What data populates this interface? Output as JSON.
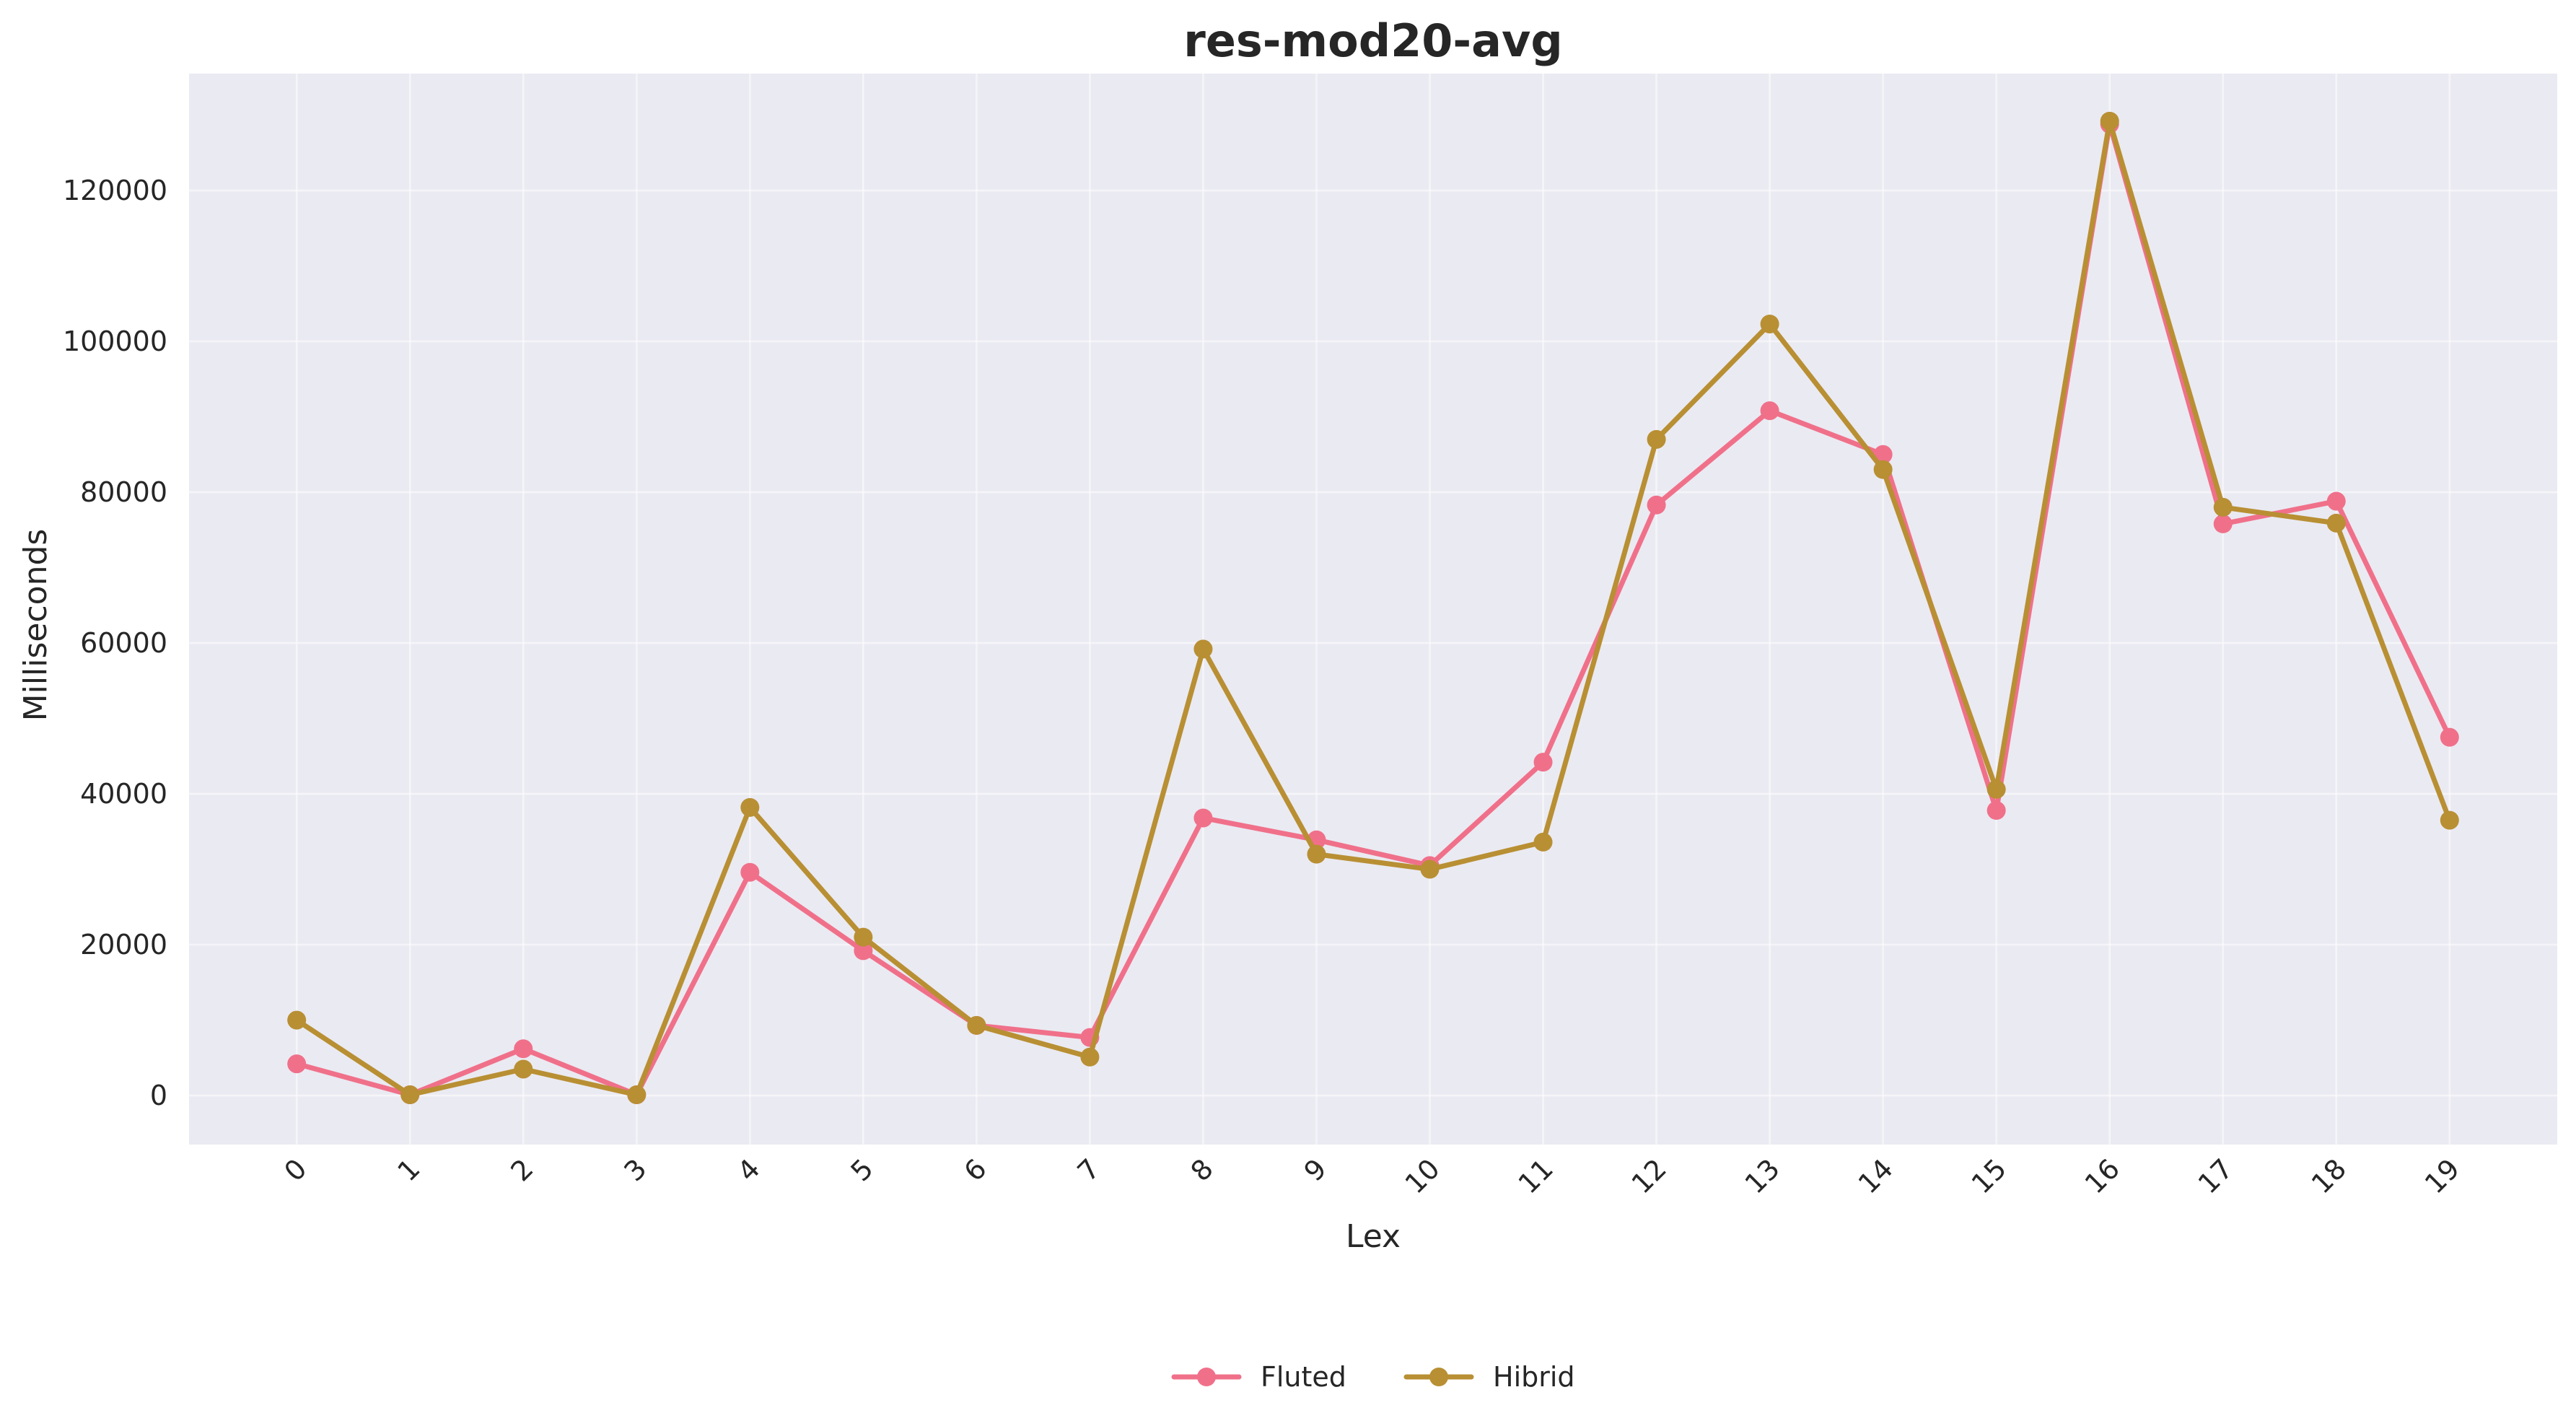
{
  "chart_data": {
    "type": "line",
    "title": "res-mod20-avg",
    "xlabel": "Lex",
    "ylabel": "Milliseconds",
    "x": [
      0,
      1,
      2,
      3,
      4,
      5,
      6,
      7,
      8,
      9,
      10,
      11,
      12,
      13,
      14,
      15,
      16,
      17,
      18,
      19
    ],
    "x_tick_labels": [
      "0",
      "1",
      "2",
      "3",
      "4",
      "5",
      "6",
      "7",
      "8",
      "9",
      "10",
      "11",
      "12",
      "13",
      "14",
      "15",
      "16",
      "17",
      "18",
      "19"
    ],
    "y_tick_labels": [
      "0",
      "20000",
      "40000",
      "60000",
      "80000",
      "100000",
      "120000"
    ],
    "y_ticks": [
      0,
      20000,
      40000,
      60000,
      80000,
      100000,
      120000
    ],
    "ylim": [
      -6500,
      135500
    ],
    "xlim": [
      -0.95,
      19.95
    ],
    "grid": true,
    "background": "#eaeaf2",
    "legend_position": "bottom-center",
    "series": [
      {
        "name": "Fluted",
        "color": "#f0708a",
        "values": [
          4200,
          100,
          6200,
          100,
          29600,
          19200,
          9300,
          7700,
          36800,
          33900,
          30500,
          44200,
          78300,
          90800,
          85000,
          37800,
          128800,
          75800,
          78800,
          47500
        ]
      },
      {
        "name": "Hibrid",
        "color": "#b88f33",
        "values": [
          10000,
          100,
          3500,
          100,
          38200,
          21000,
          9300,
          5100,
          59200,
          32000,
          30000,
          33600,
          87000,
          102300,
          83000,
          40600,
          129200,
          78000,
          75900,
          36500
        ]
      }
    ]
  }
}
